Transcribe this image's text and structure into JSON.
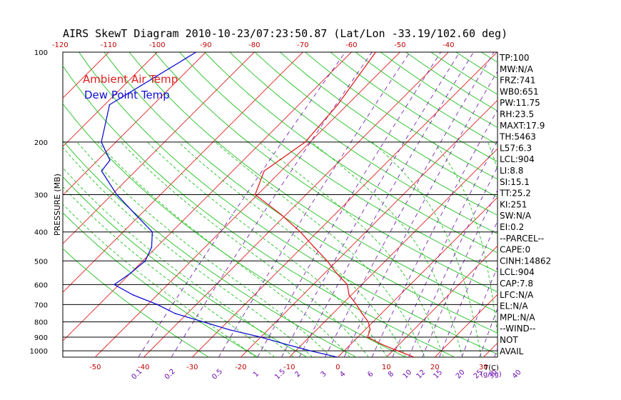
{
  "title": "AIRS SkewT Diagram 2010-10-23/07:23:50.87 (Lat/Lon -33.19/102.60 deg)",
  "y_axis_label": "PRESSURE (MB)",
  "top_temp_ticks": [
    "-120",
    "-110",
    "-100",
    "-90",
    "-80",
    "-70",
    "-60",
    "-50",
    "-40"
  ],
  "bottom_temp_ticks": [
    "-50",
    "-40",
    "-30",
    "-20",
    "-10",
    "0",
    "10",
    "20",
    "30"
  ],
  "bottom_unit_label": "T(C)",
  "mixing_ratio_ticks": [
    "0.1",
    "0.2",
    "0.5",
    "1",
    "1.5",
    "2",
    "3",
    "4",
    "6",
    "8",
    "10",
    "12",
    "15",
    "20",
    "25",
    "30",
    "40"
  ],
  "mixing_ratio_unit": "(g/kg)",
  "pressure_ticks": [
    "100",
    "200",
    "300",
    "400",
    "500",
    "600",
    "700",
    "800",
    "900",
    "1000"
  ],
  "legend": {
    "ambient": "Ambient Air Temp",
    "dewpoint": "Dew Point Temp",
    "ambient_color": "#e02020",
    "dewpoint_color": "#1010d0"
  },
  "indices": [
    "TP:100",
    "MW:N/A",
    "FRZ:741",
    "WB0:651",
    "PW:11.75",
    "RH:23.5",
    "MAXT:17.9",
    "TH:5463",
    "L57:6.3",
    "LCL:904",
    "LI:8.8",
    "SI:15.1",
    "TT:25.2",
    "KI:251",
    "SW:N/A",
    "EI:0.2",
    "--PARCEL--",
    "CAPE:0",
    "CINH:14862",
    "LCL:904",
    "CAP:7.8",
    "LFC:N/A",
    "EL:N/A",
    "MPL:N/A",
    "--WIND--",
    "NOT",
    "AVAIL"
  ],
  "colors": {
    "isotherm": "#e02020",
    "dry_adiabat": "#20c020",
    "moist_adiabat": "#20c020",
    "mixing_ratio": "#6a0dad",
    "isobar": "#000000"
  },
  "chart_data": {
    "type": "line",
    "title": "AIRS SkewT Diagram 2010-10-23/07:23:50.87 (Lat/Lon -33.19/102.60 deg)",
    "ylabel": "PRESSURE (MB)",
    "xlabel": "T(C)",
    "y_scale": "log",
    "ylim": [
      1050,
      100
    ],
    "series": [
      {
        "name": "Ambient Air Temp",
        "points": [
          [
            1050,
            15.7
          ],
          [
            1000,
            11.0
          ],
          [
            950,
            6.3
          ],
          [
            900,
            2.0
          ],
          [
            850,
            1.0
          ],
          [
            800,
            -1.0
          ],
          [
            750,
            -4.0
          ],
          [
            700,
            -7.0
          ],
          [
            650,
            -10.5
          ],
          [
            600,
            -13.0
          ],
          [
            550,
            -17.5
          ],
          [
            500,
            -22.0
          ],
          [
            450,
            -27.5
          ],
          [
            400,
            -33.5
          ],
          [
            350,
            -41.0
          ],
          [
            300,
            -50.5
          ],
          [
            250,
            -53.5
          ],
          [
            200,
            -51.0
          ],
          [
            150,
            -52.0
          ],
          [
            100,
            -55.0
          ]
        ]
      },
      {
        "name": "Dew Point Temp",
        "points": [
          [
            1050,
            -0.1
          ],
          [
            1000,
            -7.0
          ],
          [
            950,
            -13.5
          ],
          [
            900,
            -20.0
          ],
          [
            850,
            -28.0
          ],
          [
            800,
            -35.0
          ],
          [
            750,
            -42.5
          ],
          [
            700,
            -48.0
          ],
          [
            650,
            -55.0
          ],
          [
            600,
            -61.0
          ],
          [
            550,
            -60.0
          ],
          [
            500,
            -59.5
          ],
          [
            450,
            -61.0
          ],
          [
            400,
            -64.0
          ],
          [
            350,
            -71.0
          ],
          [
            300,
            -79.0
          ],
          [
            250,
            -87.0
          ],
          [
            230,
            -87.5
          ],
          [
            200,
            -93.0
          ],
          [
            150,
            -99.0
          ],
          [
            100,
            -92.0
          ]
        ]
      }
    ]
  }
}
